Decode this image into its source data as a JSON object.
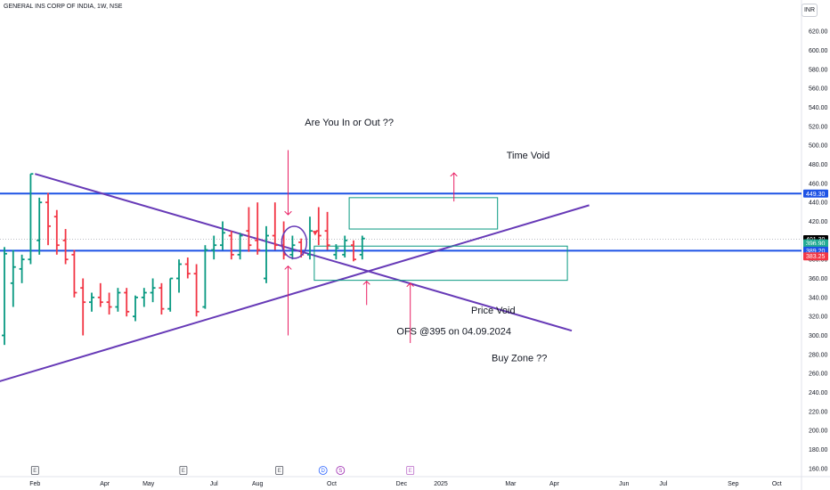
{
  "header": {
    "title": "GENERAL INS CORP OF INDIA, 1W, NSE",
    "currency": "INR"
  },
  "colors": {
    "up": "#089981",
    "down": "#f23645",
    "trend": "#673ab7",
    "level": "#1e53e5",
    "box": "#089981",
    "arrow": "#e91e63"
  },
  "chart_data": {
    "type": "candlestick-weekly",
    "ylim": [
      150,
      640
    ],
    "y_ticks": [
      620,
      600,
      580,
      560,
      540,
      520,
      500,
      480,
      460,
      440,
      420,
      400,
      380,
      360,
      340,
      320,
      300,
      280,
      260,
      240,
      220,
      200,
      180,
      160
    ],
    "y_tick_labels": [
      "620.00",
      "600.00",
      "580.00",
      "560.00",
      "540.00",
      "520.00",
      "500.00",
      "480.00",
      "460.00",
      "440.00",
      "420.00",
      "400.00",
      "380.00",
      "360.00",
      "340.00",
      "320.00",
      "300.00",
      "280.00",
      "260.00",
      "240.00",
      "220.00",
      "200.00",
      "180.00",
      "160.00"
    ],
    "x_labels": [
      "Feb",
      "Apr",
      "May",
      "Jul",
      "Aug",
      "Oct",
      "Dec",
      "2025",
      "Mar",
      "Apr",
      "Jun",
      "Jul",
      "Sep",
      "Oct"
    ],
    "x_label_weeks": [
      3.5,
      11.5,
      16.5,
      24,
      29,
      37.5,
      45.5,
      50,
      58,
      63,
      71,
      75.5,
      83.5,
      88.5
    ],
    "bars": [
      {
        "o": 300,
        "h": 393,
        "l": 290,
        "c": 386
      },
      {
        "o": 355,
        "h": 390,
        "l": 330,
        "c": 372
      },
      {
        "o": 370,
        "h": 385,
        "l": 355,
        "c": 380
      },
      {
        "o": 380,
        "h": 470,
        "l": 375,
        "c": 470
      },
      {
        "o": 400,
        "h": 445,
        "l": 385,
        "c": 440
      },
      {
        "o": 440,
        "h": 450,
        "l": 395,
        "c": 415
      },
      {
        "o": 425,
        "h": 432,
        "l": 385,
        "c": 395
      },
      {
        "o": 400,
        "h": 412,
        "l": 375,
        "c": 380
      },
      {
        "o": 385,
        "h": 390,
        "l": 340,
        "c": 345
      },
      {
        "o": 350,
        "h": 360,
        "l": 300,
        "c": 335
      },
      {
        "o": 335,
        "h": 345,
        "l": 325,
        "c": 340
      },
      {
        "o": 340,
        "h": 355,
        "l": 330,
        "c": 335
      },
      {
        "o": 335,
        "h": 345,
        "l": 322,
        "c": 330
      },
      {
        "o": 330,
        "h": 350,
        "l": 325,
        "c": 345
      },
      {
        "o": 345,
        "h": 350,
        "l": 320,
        "c": 325
      },
      {
        "o": 320,
        "h": 342,
        "l": 315,
        "c": 340
      },
      {
        "o": 340,
        "h": 350,
        "l": 330,
        "c": 345
      },
      {
        "o": 345,
        "h": 360,
        "l": 335,
        "c": 350
      },
      {
        "o": 350,
        "h": 355,
        "l": 322,
        "c": 328
      },
      {
        "o": 328,
        "h": 360,
        "l": 325,
        "c": 360
      },
      {
        "o": 360,
        "h": 380,
        "l": 345,
        "c": 375
      },
      {
        "o": 375,
        "h": 382,
        "l": 360,
        "c": 365
      },
      {
        "o": 365,
        "h": 375,
        "l": 320,
        "c": 325
      },
      {
        "o": 330,
        "h": 395,
        "l": 328,
        "c": 390
      },
      {
        "o": 390,
        "h": 405,
        "l": 380,
        "c": 395
      },
      {
        "o": 395,
        "h": 420,
        "l": 390,
        "c": 408
      },
      {
        "o": 405,
        "h": 410,
        "l": 380,
        "c": 385
      },
      {
        "o": 385,
        "h": 408,
        "l": 380,
        "c": 405
      },
      {
        "o": 410,
        "h": 435,
        "l": 388,
        "c": 395
      },
      {
        "o": 400,
        "h": 440,
        "l": 385,
        "c": 390
      },
      {
        "o": 360,
        "h": 415,
        "l": 355,
        "c": 405
      },
      {
        "o": 405,
        "h": 440,
        "l": 390,
        "c": 395
      },
      {
        "o": 395,
        "h": 420,
        "l": 380,
        "c": 385
      },
      {
        "o": 385,
        "h": 405,
        "l": 380,
        "c": 395
      },
      {
        "o": 398,
        "h": 402,
        "l": 382,
        "c": 385
      },
      {
        "o": 385,
        "h": 425,
        "l": 380,
        "c": 410
      },
      {
        "o": 410,
        "h": 435,
        "l": 395,
        "c": 405
      },
      {
        "o": 410,
        "h": 430,
        "l": 390,
        "c": 395
      },
      {
        "o": 385,
        "h": 396,
        "l": 380,
        "c": 392
      },
      {
        "o": 385,
        "h": 405,
        "l": 382,
        "c": 400
      },
      {
        "o": 395,
        "h": 400,
        "l": 378,
        "c": 380
      },
      {
        "o": 385,
        "h": 405,
        "l": 380,
        "c": 402
      }
    ],
    "trendlines": [
      {
        "name": "descending trendline",
        "from": [
          3.5,
          470
        ],
        "to": [
          65,
          305
        ]
      },
      {
        "name": "ascending trendline",
        "from": [
          -3,
          245
        ],
        "to": [
          67,
          437
        ]
      }
    ],
    "levels": [
      {
        "value": 449.3,
        "label": "449.30"
      },
      {
        "value": 389.2,
        "label": "389.20"
      }
    ],
    "price_tags": [
      {
        "value": 401.3,
        "label": "401.30",
        "color": "#000000"
      },
      {
        "value": 396.9,
        "label": "396.90",
        "color": "#22ab94"
      },
      {
        "value": 390.9,
        "label": "390.90",
        "color": "#22ab94"
      },
      {
        "value": 389.2,
        "label": "389.20",
        "color": "#1e53e5"
      },
      {
        "value": 383.25,
        "label": "383.25",
        "color": "#f23645"
      }
    ],
    "zones": [
      {
        "name": "time void box",
        "x0": 39.5,
        "x1": 56.5,
        "y0": 412,
        "y1": 445
      },
      {
        "name": "price void box",
        "x0": 35.5,
        "x1": 64.5,
        "y0": 358,
        "y1": 394
      }
    ],
    "annotations": [
      {
        "text": "Are You In or Out ??",
        "week": 39.5,
        "value": 521
      },
      {
        "text": "Time Void",
        "week": 60,
        "value": 486
      },
      {
        "text": "Price Void",
        "week": 56,
        "value": 323
      },
      {
        "text": "OFS @395 on 04.09.2024",
        "week": 51.5,
        "value": 301
      },
      {
        "text": "Buy Zone ??",
        "week": 59,
        "value": 273
      }
    ],
    "event_markers": [
      {
        "label": "E",
        "week": 3.5,
        "color": "#50535e",
        "shape": "square"
      },
      {
        "label": "E",
        "week": 20.5,
        "color": "#50535e",
        "shape": "square"
      },
      {
        "label": "E",
        "week": 31.5,
        "color": "#50535e",
        "shape": "square"
      },
      {
        "label": "D",
        "week": 36.5,
        "color": "#2962ff",
        "shape": "circle"
      },
      {
        "label": "S",
        "week": 38.5,
        "color": "#9c27b0",
        "shape": "circle"
      },
      {
        "label": "E",
        "week": 46.5,
        "color": "#ba68c8",
        "shape": "square"
      }
    ]
  }
}
